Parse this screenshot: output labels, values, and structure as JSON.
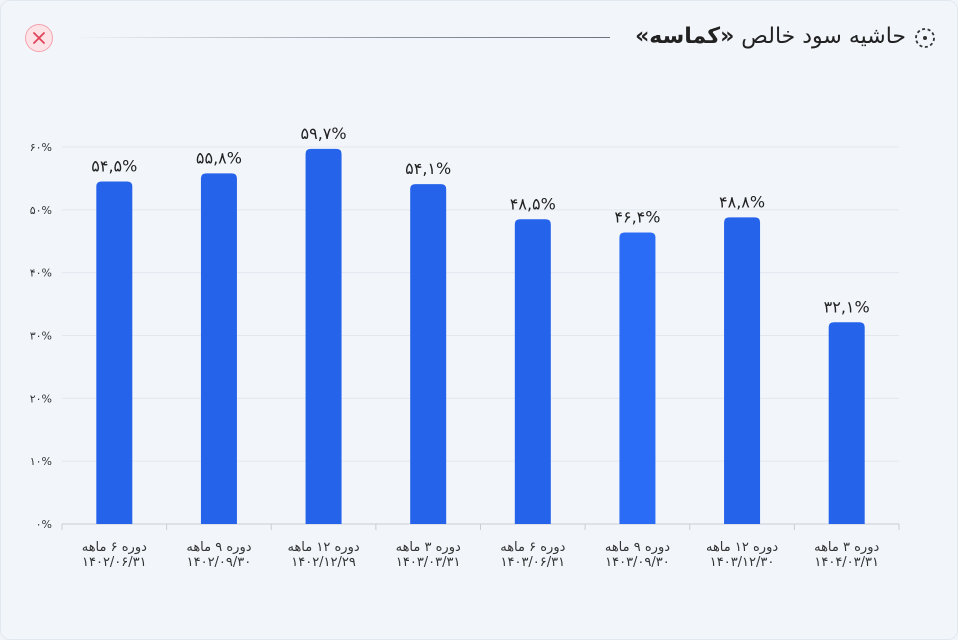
{
  "header": {
    "title_prefix": "حاشیه سود خالص ",
    "title_brand": "«کماسه»",
    "close_icon": "close-icon",
    "title_icon": "dashed-circle-icon"
  },
  "colors": {
    "bar": "#2563eb",
    "bar_highlight": "#2a6cf5",
    "grid": "#e3e8ef",
    "axis": "#c9ced6",
    "text": "#222222"
  },
  "chart_data": {
    "type": "bar",
    "title": "",
    "xlabel": "",
    "ylabel": "",
    "ylim": [
      0,
      60
    ],
    "y_ticks": [
      {
        "value": 0,
        "label": "۰%"
      },
      {
        "value": 10,
        "label": "۱۰%"
      },
      {
        "value": 20,
        "label": "۲۰%"
      },
      {
        "value": 30,
        "label": "۳۰%"
      },
      {
        "value": 40,
        "label": "۴۰%"
      },
      {
        "value": 50,
        "label": "۵۰%"
      },
      {
        "value": 60,
        "label": "۶۰%"
      }
    ],
    "grid": true,
    "categories": [
      {
        "line1": "دوره ۶ ماهه",
        "line2": "۱۴۰۲/۰۶/۳۱"
      },
      {
        "line1": "دوره ۹ ماهه",
        "line2": "۱۴۰۲/۰۹/۳۰"
      },
      {
        "line1": "دوره ۱۲ ماهه",
        "line2": "۱۴۰۲/۱۲/۲۹"
      },
      {
        "line1": "دوره ۳ ماهه",
        "line2": "۱۴۰۳/۰۳/۳۱"
      },
      {
        "line1": "دوره ۶ ماهه",
        "line2": "۱۴۰۳/۰۶/۳۱"
      },
      {
        "line1": "دوره ۹ ماهه",
        "line2": "۱۴۰۳/۰۹/۳۰"
      },
      {
        "line1": "دوره ۱۲ ماهه",
        "line2": "۱۴۰۳/۱۲/۳۰"
      },
      {
        "line1": "دوره ۳ ماهه",
        "line2": "۱۴۰۴/۰۳/۳۱"
      }
    ],
    "values": [
      54.5,
      55.8,
      59.7,
      54.1,
      48.5,
      46.4,
      48.8,
      32.1
    ],
    "data_labels": [
      "۵۴,۵%",
      "۵۵,۸%",
      "۵۹,۷%",
      "۵۴,۱%",
      "۴۸,۵%",
      "۴۶,۴%",
      "۴۸,۸%",
      "۳۲,۱%"
    ],
    "highlighted_index": 5
  }
}
